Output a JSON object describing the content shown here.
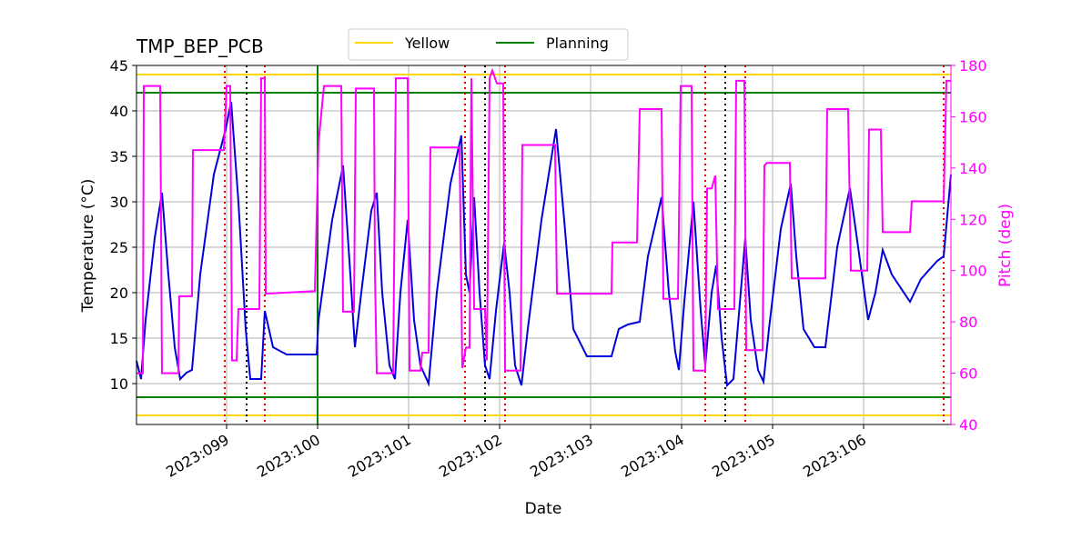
{
  "chart_data": {
    "type": "line",
    "title": "TMP_BEP_PCB",
    "xlabel": "Date",
    "ylabel": "Temperature (°C)",
    "y2label": "Pitch (deg)",
    "xlim": [
      98.01,
      106.96
    ],
    "xticks": [
      {
        "value": 99,
        "label": "2023:099"
      },
      {
        "value": 100,
        "label": "2023:100"
      },
      {
        "value": 101,
        "label": "2023:101"
      },
      {
        "value": 102,
        "label": "2023:102"
      },
      {
        "value": 103,
        "label": "2023:103"
      },
      {
        "value": 104,
        "label": "2023:104"
      },
      {
        "value": 105,
        "label": "2023:105"
      },
      {
        "value": 106,
        "label": "2023:106"
      }
    ],
    "ylim": [
      5.5,
      45
    ],
    "yticks": [
      10,
      15,
      20,
      25,
      30,
      35,
      40,
      45
    ],
    "y2lim": [
      40,
      180
    ],
    "y2ticks": [
      40,
      60,
      80,
      100,
      120,
      140,
      160,
      180
    ],
    "grid": true,
    "legend": "upper center",
    "series": [
      {
        "color": "#0000dd",
        "x": [
          98.01,
          98.06,
          98.11,
          98.21,
          98.29,
          98.36,
          98.43,
          98.49,
          98.56,
          98.62,
          98.71,
          98.86,
          98.99,
          99.05,
          99.13,
          99.21,
          99.26,
          99.38,
          99.42,
          99.51,
          99.66,
          99.99,
          100.01,
          100.16,
          100.28,
          100.36,
          100.41,
          100.48,
          100.59,
          100.65,
          100.71,
          100.79,
          100.85,
          100.91,
          100.99,
          101.06,
          101.13,
          101.22,
          101.31,
          101.46,
          101.58,
          101.63,
          101.67,
          101.72,
          101.78,
          101.84,
          101.89,
          101.96,
          102.05,
          102.11,
          102.17,
          102.24,
          102.31,
          102.46,
          102.62,
          102.71,
          102.81,
          102.96,
          103.23,
          103.31,
          103.41,
          103.54,
          103.63,
          103.78,
          103.86,
          103.93,
          103.97,
          104.03,
          104.13,
          104.21,
          104.26,
          104.33,
          104.38,
          104.44,
          104.5,
          104.57,
          104.7,
          104.76,
          104.84,
          104.9,
          104.96,
          105.09,
          105.2,
          105.26,
          105.34,
          105.46,
          105.58,
          105.71,
          105.85,
          105.94,
          106.05,
          106.13,
          106.21,
          106.31,
          106.51,
          106.63,
          106.81,
          106.88,
          106.96
        ],
        "values": [
          12.5,
          10.5,
          17,
          26,
          31,
          22,
          14,
          10.5,
          11.2,
          11.5,
          22,
          33,
          38,
          41,
          30,
          16,
          10.5,
          10.5,
          18,
          14,
          13.2,
          13.2,
          17,
          28,
          34,
          22,
          14,
          20,
          29,
          31,
          20,
          12,
          10.5,
          20,
          28,
          17,
          12,
          10,
          20,
          32,
          37.3,
          22,
          20,
          30.5,
          20,
          12,
          10.5,
          18,
          25.5,
          20,
          12,
          9.8,
          16,
          28,
          38,
          28,
          16,
          13,
          13,
          16,
          16.5,
          16.8,
          24,
          30.5,
          20,
          13.5,
          11.5,
          19,
          30,
          18,
          12,
          20,
          23,
          15,
          9.8,
          10.5,
          26,
          17,
          11.5,
          10.2,
          16,
          27,
          32,
          24,
          16,
          14,
          14,
          25,
          31.5,
          25,
          17,
          20,
          24.7,
          22,
          19,
          21.5,
          23.5,
          24,
          33
        ]
      },
      {
        "color": "#ff00ff",
        "axis": "y2",
        "x": [
          98.01,
          98.08,
          98.09,
          98.27,
          98.29,
          98.47,
          98.48,
          98.62,
          98.63,
          98.97,
          99.0,
          99.04,
          99.06,
          99.11,
          99.13,
          99.36,
          99.38,
          99.42,
          99.43,
          99.97,
          100.01,
          100.07,
          100.26,
          100.28,
          100.4,
          100.42,
          100.62,
          100.63,
          100.65,
          100.83,
          100.86,
          100.99,
          101.01,
          101.13,
          101.15,
          101.22,
          101.24,
          101.56,
          101.59,
          101.63,
          101.67,
          101.69,
          101.72,
          101.84,
          101.86,
          101.89,
          101.92,
          101.97,
          102.04,
          102.06,
          102.23,
          102.25,
          102.61,
          102.63,
          103.23,
          103.24,
          103.51,
          103.54,
          103.78,
          103.8,
          103.96,
          103.99,
          104.11,
          104.13,
          104.26,
          104.28,
          104.33,
          104.37,
          104.4,
          104.58,
          104.6,
          104.69,
          104.71,
          104.89,
          104.91,
          104.94,
          105.19,
          105.21,
          105.58,
          105.6,
          105.83,
          105.86,
          106.04,
          106.06,
          106.19,
          106.21,
          106.51,
          106.53,
          106.88,
          106.91,
          106.96
        ],
        "values": [
          60,
          60,
          172,
          172,
          60,
          60,
          90,
          90,
          147,
          147,
          172,
          172,
          65,
          65,
          85,
          85,
          175,
          175,
          91,
          92,
          150,
          172,
          172,
          84,
          84,
          171,
          171,
          100,
          60,
          60,
          175,
          175,
          61,
          61,
          68,
          68,
          148,
          148,
          62,
          70,
          70,
          175,
          85,
          85,
          65,
          175,
          178,
          173,
          173,
          61,
          61,
          149,
          149,
          91,
          91,
          111,
          111,
          163,
          163,
          89,
          89,
          172,
          172,
          61,
          61,
          132,
          132,
          137,
          85,
          85,
          174,
          174,
          69,
          69,
          141,
          142,
          142,
          97,
          97,
          163,
          163,
          100,
          100,
          155,
          155,
          115,
          115,
          127,
          127,
          174,
          174
        ]
      }
    ],
    "limit_lines": [
      {
        "name": "Yellow",
        "color": "#ffd700",
        "values": [
          44,
          6.5
        ]
      },
      {
        "name": "Planning",
        "color": "#008000",
        "values": [
          42,
          8.5
        ]
      }
    ],
    "vlines": [
      {
        "color": "#008000",
        "style": "solid",
        "values": [
          100.0
        ]
      },
      {
        "color": "#ee0000",
        "style": "dotted",
        "values": [
          98.98,
          99.42,
          101.62,
          102.06,
          104.26,
          104.7,
          106.88
        ]
      },
      {
        "color": "#000000",
        "style": "dotted",
        "values": [
          99.22,
          101.84,
          104.48
        ]
      }
    ]
  }
}
